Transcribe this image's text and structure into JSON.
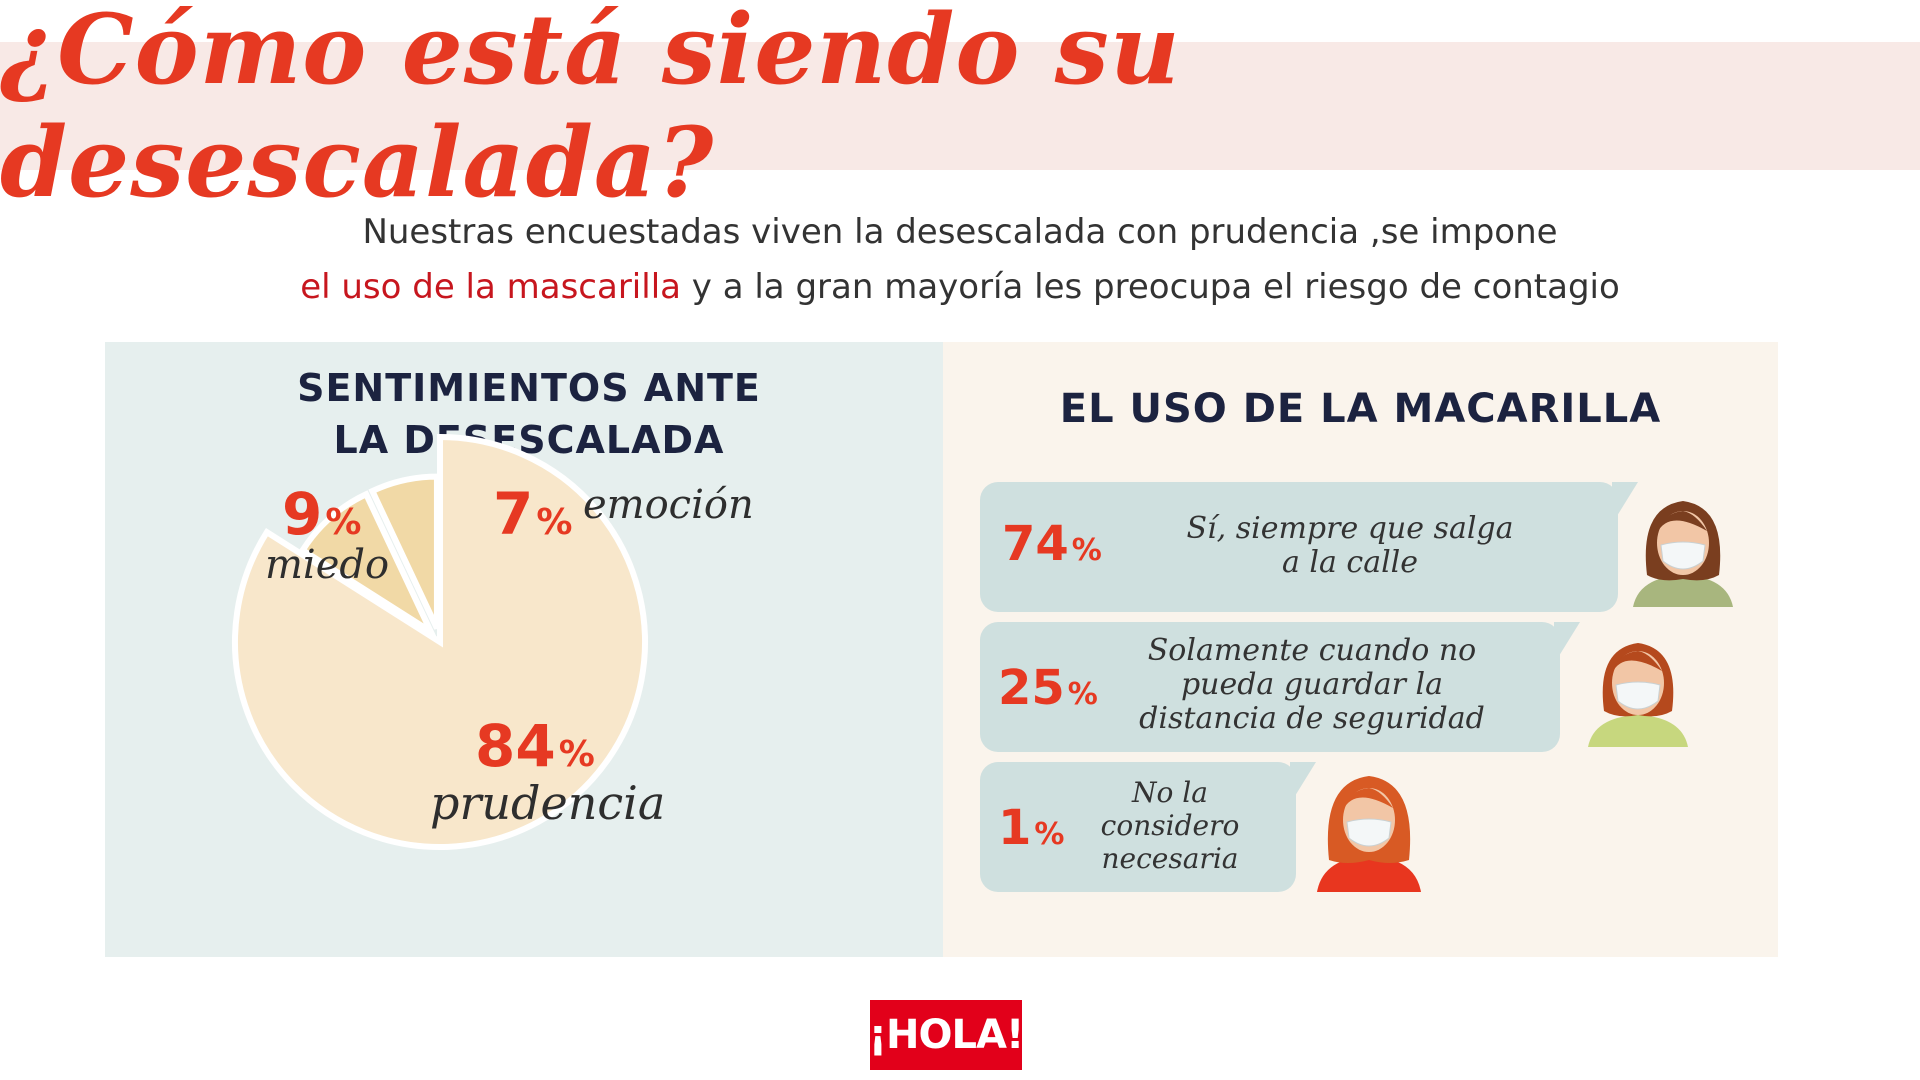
{
  "header": {
    "title": "¿Cómo está siendo su desescalada?",
    "subtitle_line1": "Nuestras encuestadas viven la desescalada con prudencia ,se impone",
    "subtitle_highlight": "el uso de la mascarilla",
    "subtitle_line2_rest": " y a la gran mayoría les preocupa el riesgo de contagio"
  },
  "left_panel": {
    "title_line1": "SENTIMIENTOS ANTE",
    "title_line2": "LA DESESCALADA"
  },
  "right_panel": {
    "title": "EL USO DE LA MACARILLA",
    "rows": [
      {
        "value": "74",
        "unit": "%",
        "text_line1": "Sí, siempre que salga",
        "text_line2": "a la calle",
        "text_line3": ""
      },
      {
        "value": "25",
        "unit": "%",
        "text_line1": "Solamente cuando no",
        "text_line2": "pueda guardar la",
        "text_line3": "distancia de seguridad"
      },
      {
        "value": "1",
        "unit": "%",
        "text_line1": "No la",
        "text_line2": "considero",
        "text_line3": "necesaria"
      }
    ]
  },
  "chart_data": [
    {
      "type": "pie",
      "title": "SENTIMIENTOS ANTE LA DESESCALADA",
      "categories": [
        "prudencia",
        "miedo",
        "emoción"
      ],
      "values": [
        84,
        9,
        7
      ],
      "unit": "%",
      "colors": [
        "#f8e7cb",
        "#f1d9a6",
        "#f1d9a6"
      ]
    },
    {
      "type": "bar",
      "title": "EL USO DE LA MACARILLA",
      "categories": [
        "Sí, siempre que salga a la calle",
        "Solamente cuando no pueda guardar la distancia de seguridad",
        "No la considero necesaria"
      ],
      "values": [
        74,
        25,
        1
      ],
      "unit": "%"
    }
  ],
  "colors": {
    "accent_red": "#e63922",
    "banner_bg": "#f8e9e6",
    "left_panel_bg": "#e6efee",
    "right_panel_bg": "#faf4ec",
    "bubble_bg": "#cfe0df",
    "title_navy": "#1c2340"
  },
  "icons": [
    "woman-with-mask-icon"
  ],
  "logo": {
    "text": "¡HOLA!"
  }
}
